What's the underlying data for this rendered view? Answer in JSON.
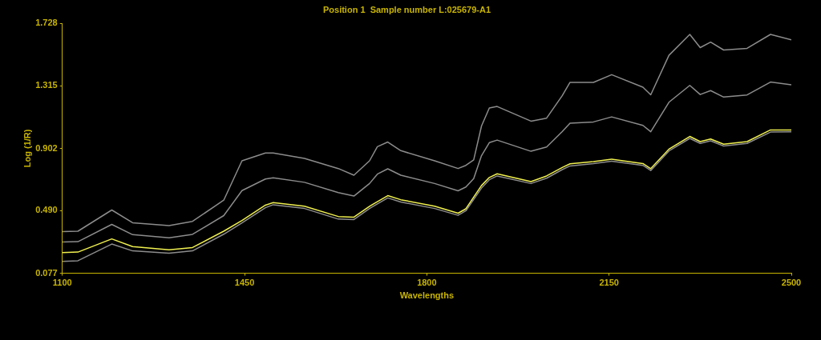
{
  "chart_data": {
    "type": "line",
    "title": "Position 1  Sample number L:025679-A1",
    "xlabel": "Wavelengths",
    "ylabel": "Log (1/R)",
    "x": [
      1100,
      1130,
      1195,
      1235,
      1305,
      1350,
      1410,
      1445,
      1490,
      1505,
      1565,
      1630,
      1660,
      1690,
      1705,
      1725,
      1750,
      1815,
      1860,
      1875,
      1890,
      1905,
      1920,
      1935,
      2000,
      2030,
      2060,
      2075,
      2120,
      2155,
      2215,
      2230,
      2265,
      2305,
      2325,
      2345,
      2370,
      2415,
      2460,
      2500
    ],
    "series": [
      {
        "color": "#8c8c8c",
        "values": [
          0.353,
          0.355,
          0.495,
          0.411,
          0.392,
          0.42,
          0.56,
          0.82,
          0.872,
          0.872,
          0.836,
          0.769,
          0.725,
          0.82,
          0.913,
          0.944,
          0.887,
          0.82,
          0.769,
          0.79,
          0.826,
          1.05,
          1.169,
          1.179,
          1.082,
          1.102,
          1.25,
          1.338,
          1.338,
          1.389,
          1.306,
          1.256,
          1.517,
          1.655,
          1.568,
          1.604,
          1.552,
          1.563,
          1.655,
          1.619
        ]
      },
      {
        "color": "#8c8c8c",
        "values": [
          0.283,
          0.286,
          0.4,
          0.332,
          0.312,
          0.334,
          0.458,
          0.623,
          0.7,
          0.708,
          0.678,
          0.61,
          0.587,
          0.67,
          0.732,
          0.767,
          0.725,
          0.67,
          0.622,
          0.647,
          0.703,
          0.854,
          0.94,
          0.957,
          0.883,
          0.911,
          1.013,
          1.069,
          1.077,
          1.11,
          1.054,
          1.012,
          1.207,
          1.318,
          1.258,
          1.284,
          1.241,
          1.255,
          1.34,
          1.322
        ]
      },
      {
        "color": "#8c8c8c",
        "values": [
          0.155,
          0.16,
          0.27,
          0.225,
          0.21,
          0.225,
          0.335,
          0.41,
          0.51,
          0.53,
          0.505,
          0.435,
          0.432,
          0.505,
          0.535,
          0.575,
          0.548,
          0.505,
          0.46,
          0.49,
          0.565,
          0.64,
          0.695,
          0.72,
          0.67,
          0.705,
          0.762,
          0.786,
          0.802,
          0.818,
          0.79,
          0.756,
          0.885,
          0.968,
          0.935,
          0.952,
          0.918,
          0.935,
          1.01,
          1.012
        ]
      },
      {
        "color": "#f0f050",
        "values": [
          0.213,
          0.217,
          0.304,
          0.253,
          0.232,
          0.247,
          0.355,
          0.426,
          0.527,
          0.544,
          0.52,
          0.452,
          0.448,
          0.52,
          0.55,
          0.59,
          0.563,
          0.52,
          0.474,
          0.503,
          0.58,
          0.657,
          0.71,
          0.734,
          0.683,
          0.72,
          0.776,
          0.8,
          0.815,
          0.831,
          0.802,
          0.768,
          0.897,
          0.981,
          0.947,
          0.964,
          0.93,
          0.947,
          1.024,
          1.024
        ]
      }
    ],
    "xlim": [
      1100,
      2500
    ],
    "xticks": [
      1100,
      1450,
      1800,
      2150,
      2500
    ],
    "ylim": [
      0.077,
      1.728
    ],
    "yticks": [
      {
        "value": 0.077,
        "label": "0.077"
      },
      {
        "value": 0.49,
        "label": "0.490"
      },
      {
        "value": 0.902,
        "label": "0.902"
      },
      {
        "value": 1.315,
        "label": "1.315"
      },
      {
        "value": 1.728,
        "label": "1.728"
      }
    ],
    "grid": false,
    "legend": false,
    "marker": "none",
    "line_style": "solid"
  }
}
